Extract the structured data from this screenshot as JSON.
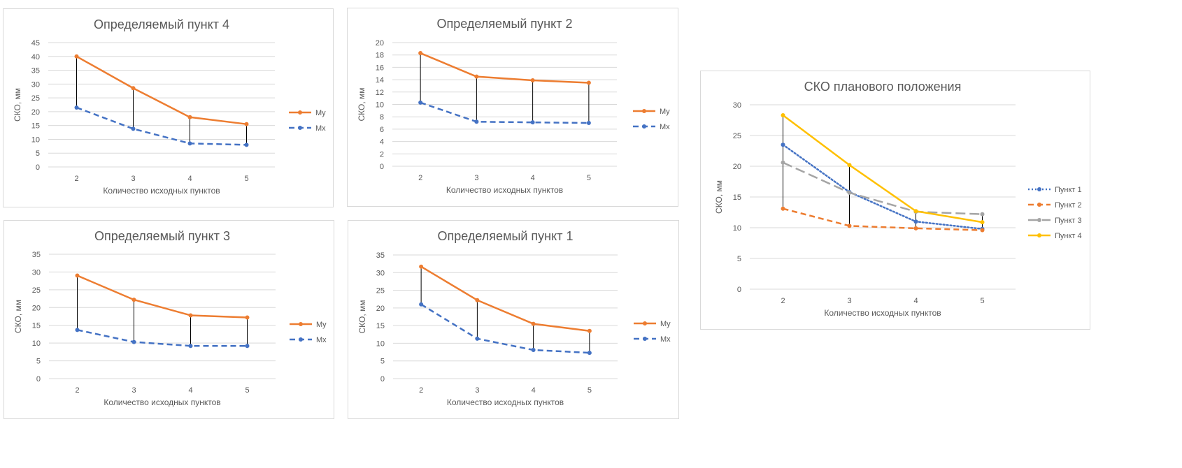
{
  "chart_data": [
    {
      "type": "line",
      "title": "Определяемый пункт 4",
      "xlabel": "Количество исходных пунктов",
      "ylabel": "СКО, мм",
      "categories": [
        "2",
        "3",
        "4",
        "5"
      ],
      "ylim": [
        0,
        45
      ],
      "yticks": [
        0,
        5,
        10,
        15,
        20,
        25,
        30,
        35,
        40,
        45
      ],
      "hi_lo_lines": true,
      "legend": "right",
      "series": [
        {
          "name": "My",
          "values": [
            40,
            28.5,
            18,
            15.5
          ],
          "color": "#ed7d31",
          "style": "solid"
        },
        {
          "name": "Mx",
          "values": [
            21.5,
            13.8,
            8.5,
            8
          ],
          "color": "#4472c4",
          "style": "dash"
        }
      ]
    },
    {
      "type": "line",
      "title": "Определяемый пункт 2",
      "xlabel": "Количество исходных пунктов",
      "ylabel": "СКО, мм",
      "categories": [
        "2",
        "3",
        "4",
        "5"
      ],
      "ylim": [
        0,
        20
      ],
      "yticks": [
        0,
        2,
        4,
        6,
        8,
        10,
        12,
        14,
        16,
        18,
        20
      ],
      "hi_lo_lines": true,
      "legend": "right",
      "series": [
        {
          "name": "My",
          "values": [
            18.3,
            14.5,
            13.9,
            13.5
          ],
          "color": "#ed7d31",
          "style": "solid"
        },
        {
          "name": "Mx",
          "values": [
            10.3,
            7.2,
            7.1,
            7
          ],
          "color": "#4472c4",
          "style": "dash"
        }
      ]
    },
    {
      "type": "line",
      "title": "Определяемый пункт 3",
      "xlabel": "Количество исходных пунктов",
      "ylabel": "СКО, мм",
      "categories": [
        "2",
        "3",
        "4",
        "5"
      ],
      "ylim": [
        0,
        35
      ],
      "yticks": [
        0,
        5,
        10,
        15,
        20,
        25,
        30,
        35
      ],
      "hi_lo_lines": true,
      "legend": "right",
      "series": [
        {
          "name": "My",
          "values": [
            29,
            22.2,
            17.8,
            17.2
          ],
          "color": "#ed7d31",
          "style": "solid"
        },
        {
          "name": "Mx",
          "values": [
            13.7,
            10.3,
            9.2,
            9.2
          ],
          "color": "#4472c4",
          "style": "dash"
        }
      ]
    },
    {
      "type": "line",
      "title": "Определяемый пункт 1",
      "xlabel": "Количество исходных пунктов",
      "ylabel": "СКО, мм",
      "categories": [
        "2",
        "3",
        "4",
        "5"
      ],
      "ylim": [
        0,
        35
      ],
      "yticks": [
        0,
        5,
        10,
        15,
        20,
        25,
        30,
        35
      ],
      "hi_lo_lines": true,
      "legend": "right",
      "series": [
        {
          "name": "My",
          "values": [
            31.7,
            22.2,
            15.5,
            13.5
          ],
          "color": "#ed7d31",
          "style": "solid"
        },
        {
          "name": "Mx",
          "values": [
            21,
            11.3,
            8.1,
            7.3
          ],
          "color": "#4472c4",
          "style": "dash"
        }
      ]
    },
    {
      "type": "line",
      "title": "СКО планового положения",
      "xlabel": "Количество исходных пунктов",
      "ylabel": "СКО, мм",
      "categories": [
        "2",
        "3",
        "4",
        "5"
      ],
      "ylim": [
        0,
        30
      ],
      "yticks": [
        0,
        5,
        10,
        15,
        20,
        25,
        30
      ],
      "hi_lo_lines": true,
      "legend": "right",
      "series": [
        {
          "name": "Пункт 1",
          "values": [
            23.5,
            15.8,
            11,
            9.8
          ],
          "color": "#4472c4",
          "style": "dot"
        },
        {
          "name": "Пункт 2",
          "values": [
            13.1,
            10.3,
            9.9,
            9.6
          ],
          "color": "#ed7d31",
          "style": "dash"
        },
        {
          "name": "Пункт 3",
          "values": [
            20.6,
            15.7,
            12.6,
            12.2
          ],
          "color": "#a5a5a5",
          "style": "longdash"
        },
        {
          "name": "Пункт 4",
          "values": [
            28.3,
            20.2,
            12.7,
            10.9
          ],
          "color": "#ffc000",
          "style": "solid"
        }
      ]
    }
  ]
}
